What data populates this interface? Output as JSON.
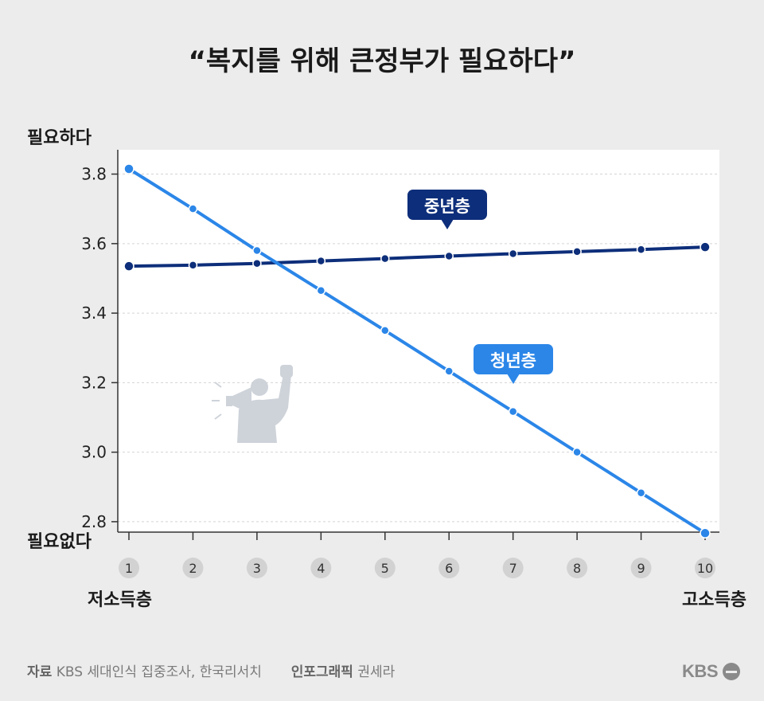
{
  "chart_data": {
    "type": "line",
    "title": "“복지를 위해 큰정부가 필요하다”",
    "y_top_label": "필요하다",
    "y_bottom_label": "필요없다",
    "x_left_label": "저소득층",
    "x_right_label": "고소득층",
    "x": [
      1,
      2,
      3,
      4,
      5,
      6,
      7,
      8,
      9,
      10
    ],
    "x_tick_labels": [
      "1",
      "2",
      "3",
      "4",
      "5",
      "6",
      "7",
      "8",
      "9",
      "10"
    ],
    "y_ticks": [
      3.8,
      3.6,
      3.4,
      3.2,
      3.0,
      2.8
    ],
    "y_tick_labels": [
      "3.8",
      "3.6",
      "3.4",
      "3.2",
      "3.0",
      "2.8"
    ],
    "ylim": [
      2.77,
      3.87
    ],
    "grid": true,
    "series": [
      {
        "name": "중년층",
        "color": "#0d2e7a",
        "values": [
          3.535,
          3.538,
          3.543,
          3.55,
          3.557,
          3.564,
          3.571,
          3.577,
          3.583,
          3.59
        ]
      },
      {
        "name": "청년층",
        "color": "#2b86e8",
        "values": [
          3.815,
          3.7,
          3.58,
          3.465,
          3.35,
          3.233,
          3.117,
          3.0,
          2.883,
          2.767
        ]
      }
    ]
  },
  "footer": {
    "source_label": "자료",
    "source_text": "KBS 세대인식 집중조사, 한국리서치",
    "graphic_label": "인포그래픽",
    "graphic_text": "권세라"
  },
  "logo_text": "KBS",
  "icons": {
    "illustration": "megaphone-protester-icon"
  }
}
